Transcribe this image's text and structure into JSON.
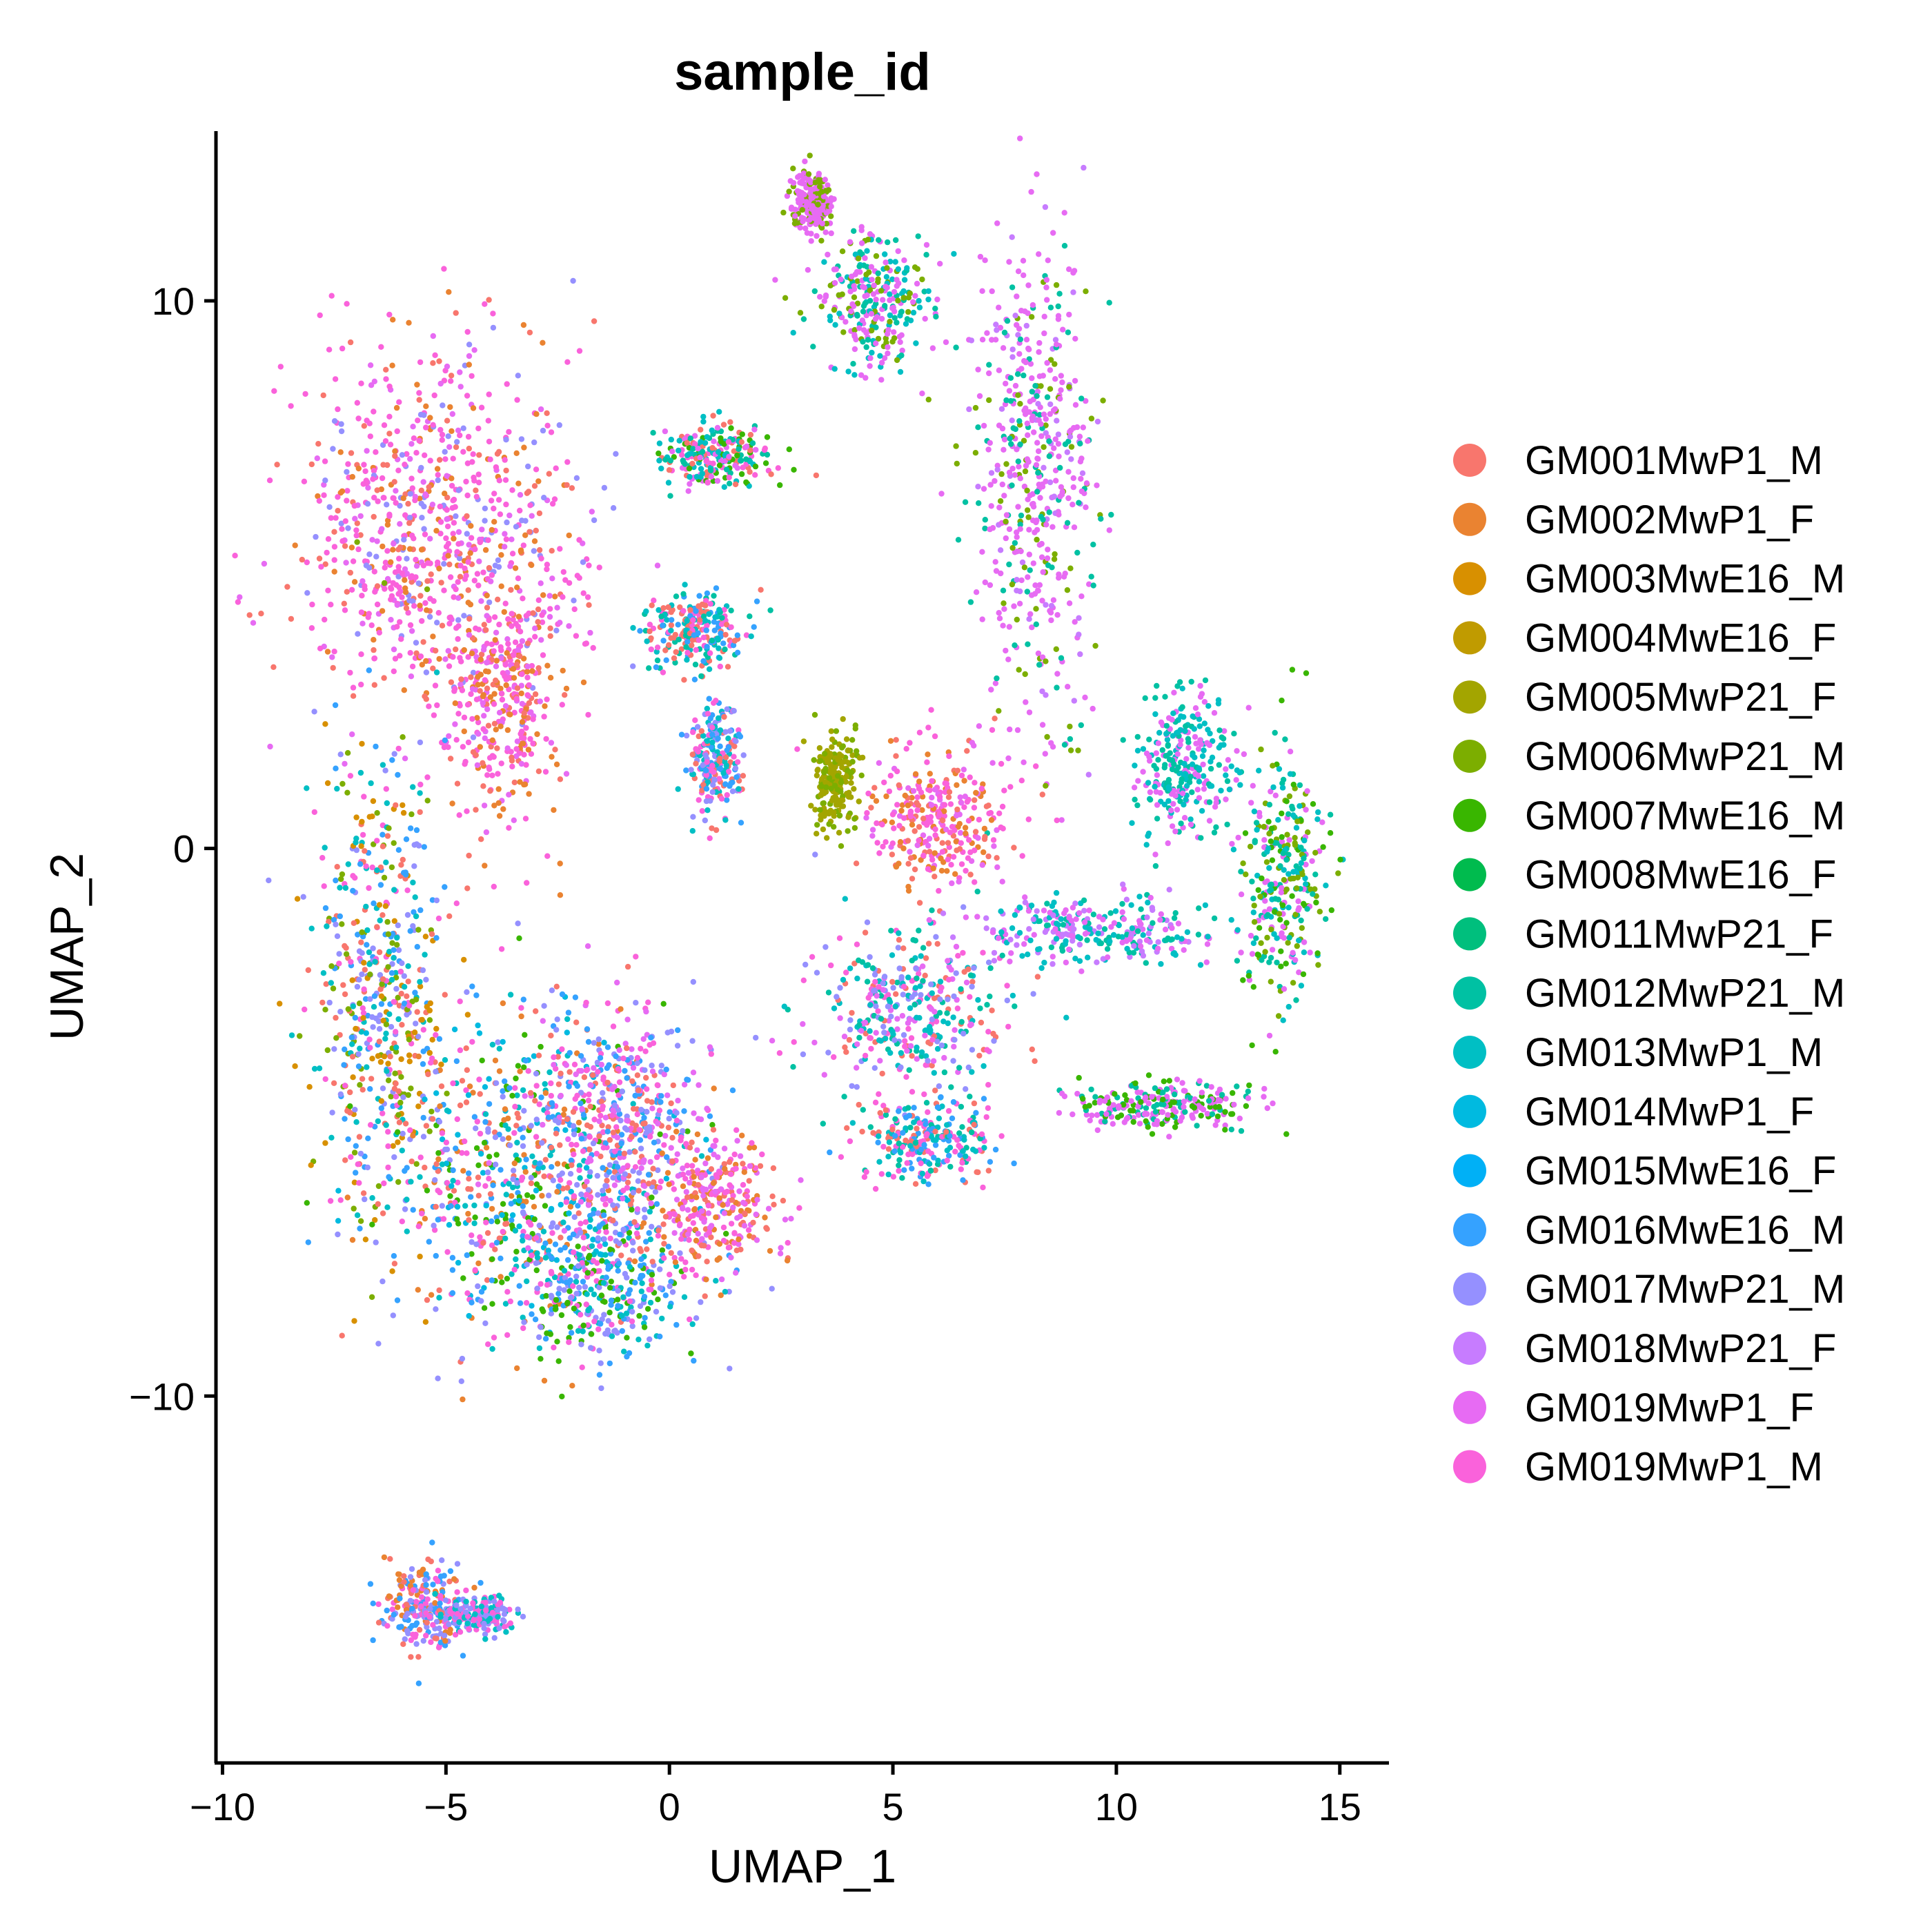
{
  "chart_data": {
    "type": "scatter",
    "title": "sample_id",
    "xlabel": "UMAP_1",
    "ylabel": "UMAP_2",
    "xlim": [
      -10.1,
      16.1
    ],
    "ylim": [
      -16.7,
      13.1
    ],
    "xticks": [
      -10,
      -5,
      0,
      5,
      10,
      15
    ],
    "xtick_labels": [
      "−10",
      "−5",
      "0",
      "5",
      "10",
      "15"
    ],
    "yticks": [
      -10,
      0,
      10
    ],
    "ytick_labels": [
      "−10",
      "0",
      "10"
    ],
    "grid": false,
    "legend_position": "right",
    "series": [
      {
        "name": "GM001MwP1_M",
        "color": "#F8766D"
      },
      {
        "name": "GM002MwP1_F",
        "color": "#EA8331"
      },
      {
        "name": "GM003MwE16_M",
        "color": "#D89000"
      },
      {
        "name": "GM004MwE16_F",
        "color": "#C09B00"
      },
      {
        "name": "GM005MwP21_F",
        "color": "#A3A500"
      },
      {
        "name": "GM006MwP21_M",
        "color": "#7CAE00"
      },
      {
        "name": "GM007MwE16_M",
        "color": "#39B600"
      },
      {
        "name": "GM008MwE16_F",
        "color": "#00BB4E"
      },
      {
        "name": "GM011MwP21_F",
        "color": "#00BF7D"
      },
      {
        "name": "GM012MwP21_M",
        "color": "#00C1A3"
      },
      {
        "name": "GM013MwP1_M",
        "color": "#00BFC4"
      },
      {
        "name": "GM014MwP1_F",
        "color": "#00BAE0"
      },
      {
        "name": "GM015MwE16_F",
        "color": "#00B0F6"
      },
      {
        "name": "GM016MwE16_M",
        "color": "#35A2FF"
      },
      {
        "name": "GM017MwP21_M",
        "color": "#9590FF"
      },
      {
        "name": "GM018MwP21_F",
        "color": "#C77CFF"
      },
      {
        "name": "GM019MwP1_F",
        "color": "#E76BF3"
      },
      {
        "name": "GM019MwP1_M",
        "color": "#FA62DB"
      }
    ],
    "clusters": [
      {
        "cx": -5.2,
        "cy": 5.8,
        "sx": 2.2,
        "sy": 2.3,
        "mix": [
          1,
          17,
          17,
          17,
          16,
          0,
          14
        ]
      },
      {
        "cx": -3.8,
        "cy": 3.0,
        "sx": 0.9,
        "sy": 1.6,
        "mix": [
          17,
          17,
          0,
          16,
          1
        ]
      },
      {
        "cx": -6.5,
        "cy": -2.5,
        "sx": 1.0,
        "sy": 3.0,
        "mix": [
          13,
          14,
          10,
          17,
          0,
          5,
          2
        ]
      },
      {
        "cx": -3.0,
        "cy": -6.0,
        "sx": 2.4,
        "sy": 2.0,
        "mix": [
          14,
          13,
          10,
          17,
          1,
          0,
          6,
          11
        ]
      },
      {
        "cx": -1.2,
        "cy": -5.0,
        "sx": 1.3,
        "sy": 1.5,
        "mix": [
          17,
          16,
          14,
          0,
          13
        ]
      },
      {
        "cx": -1.5,
        "cy": -8.0,
        "sx": 1.4,
        "sy": 0.9,
        "mix": [
          14,
          13,
          10,
          6,
          17
        ]
      },
      {
        "cx": 1.0,
        "cy": -6.5,
        "sx": 0.9,
        "sy": 0.8,
        "mix": [
          17,
          16,
          1,
          0
        ]
      },
      {
        "cx": 8.2,
        "cy": 7.0,
        "sx": 0.9,
        "sy": 3.0,
        "mix": [
          16,
          16,
          16,
          15,
          9,
          5
        ]
      },
      {
        "cx": 3.2,
        "cy": 11.8,
        "sx": 0.3,
        "sy": 0.4,
        "mix": [
          16,
          16,
          5
        ]
      },
      {
        "cx": 4.5,
        "cy": 10.0,
        "sx": 0.9,
        "sy": 0.8,
        "mix": [
          16,
          16,
          9,
          10,
          5
        ]
      },
      {
        "cx": 1.0,
        "cy": 7.2,
        "sx": 0.8,
        "sy": 0.4,
        "mix": [
          0,
          17,
          10,
          6,
          9,
          16
        ]
      },
      {
        "cx": 0.6,
        "cy": 4.0,
        "sx": 0.7,
        "sy": 0.5,
        "mix": [
          13,
          10,
          17,
          9,
          0
        ]
      },
      {
        "cx": 1.0,
        "cy": 1.6,
        "sx": 0.4,
        "sy": 0.7,
        "mix": [
          17,
          14,
          10,
          0,
          13
        ]
      },
      {
        "cx": 3.7,
        "cy": 1.2,
        "sx": 0.3,
        "sy": 0.6,
        "mix": [
          4,
          4,
          5
        ]
      },
      {
        "cx": 6.0,
        "cy": 0.5,
        "sx": 1.1,
        "sy": 0.9,
        "mix": [
          17,
          17,
          16,
          1,
          0
        ]
      },
      {
        "cx": 5.3,
        "cy": -3.0,
        "sx": 1.5,
        "sy": 1.0,
        "mix": [
          17,
          9,
          10,
          14,
          16,
          0
        ]
      },
      {
        "cx": 5.7,
        "cy": -5.3,
        "sx": 1.0,
        "sy": 0.5,
        "mix": [
          17,
          9,
          10,
          13,
          0
        ]
      },
      {
        "cx": 13.7,
        "cy": -0.5,
        "sx": 0.6,
        "sy": 1.5,
        "mix": [
          16,
          9,
          5,
          10,
          6
        ]
      },
      {
        "cx": 11.0,
        "cy": -4.7,
        "sx": 1.4,
        "sy": 0.3,
        "mix": [
          16,
          16,
          9,
          6
        ]
      },
      {
        "cx": 9.5,
        "cy": -1.5,
        "sx": 1.8,
        "sy": 0.4,
        "mix": [
          16,
          9,
          10,
          15
        ]
      },
      {
        "cx": 11.5,
        "cy": 1.5,
        "sx": 0.8,
        "sy": 0.9,
        "mix": [
          16,
          10,
          9
        ]
      },
      {
        "cx": -5.5,
        "cy": -13.9,
        "sx": 0.6,
        "sy": 0.5,
        "mix": [
          14,
          17,
          13,
          1,
          0
        ]
      },
      {
        "cx": -4.2,
        "cy": -14.0,
        "sx": 0.5,
        "sy": 0.2,
        "mix": [
          14,
          17,
          10
        ]
      }
    ]
  }
}
